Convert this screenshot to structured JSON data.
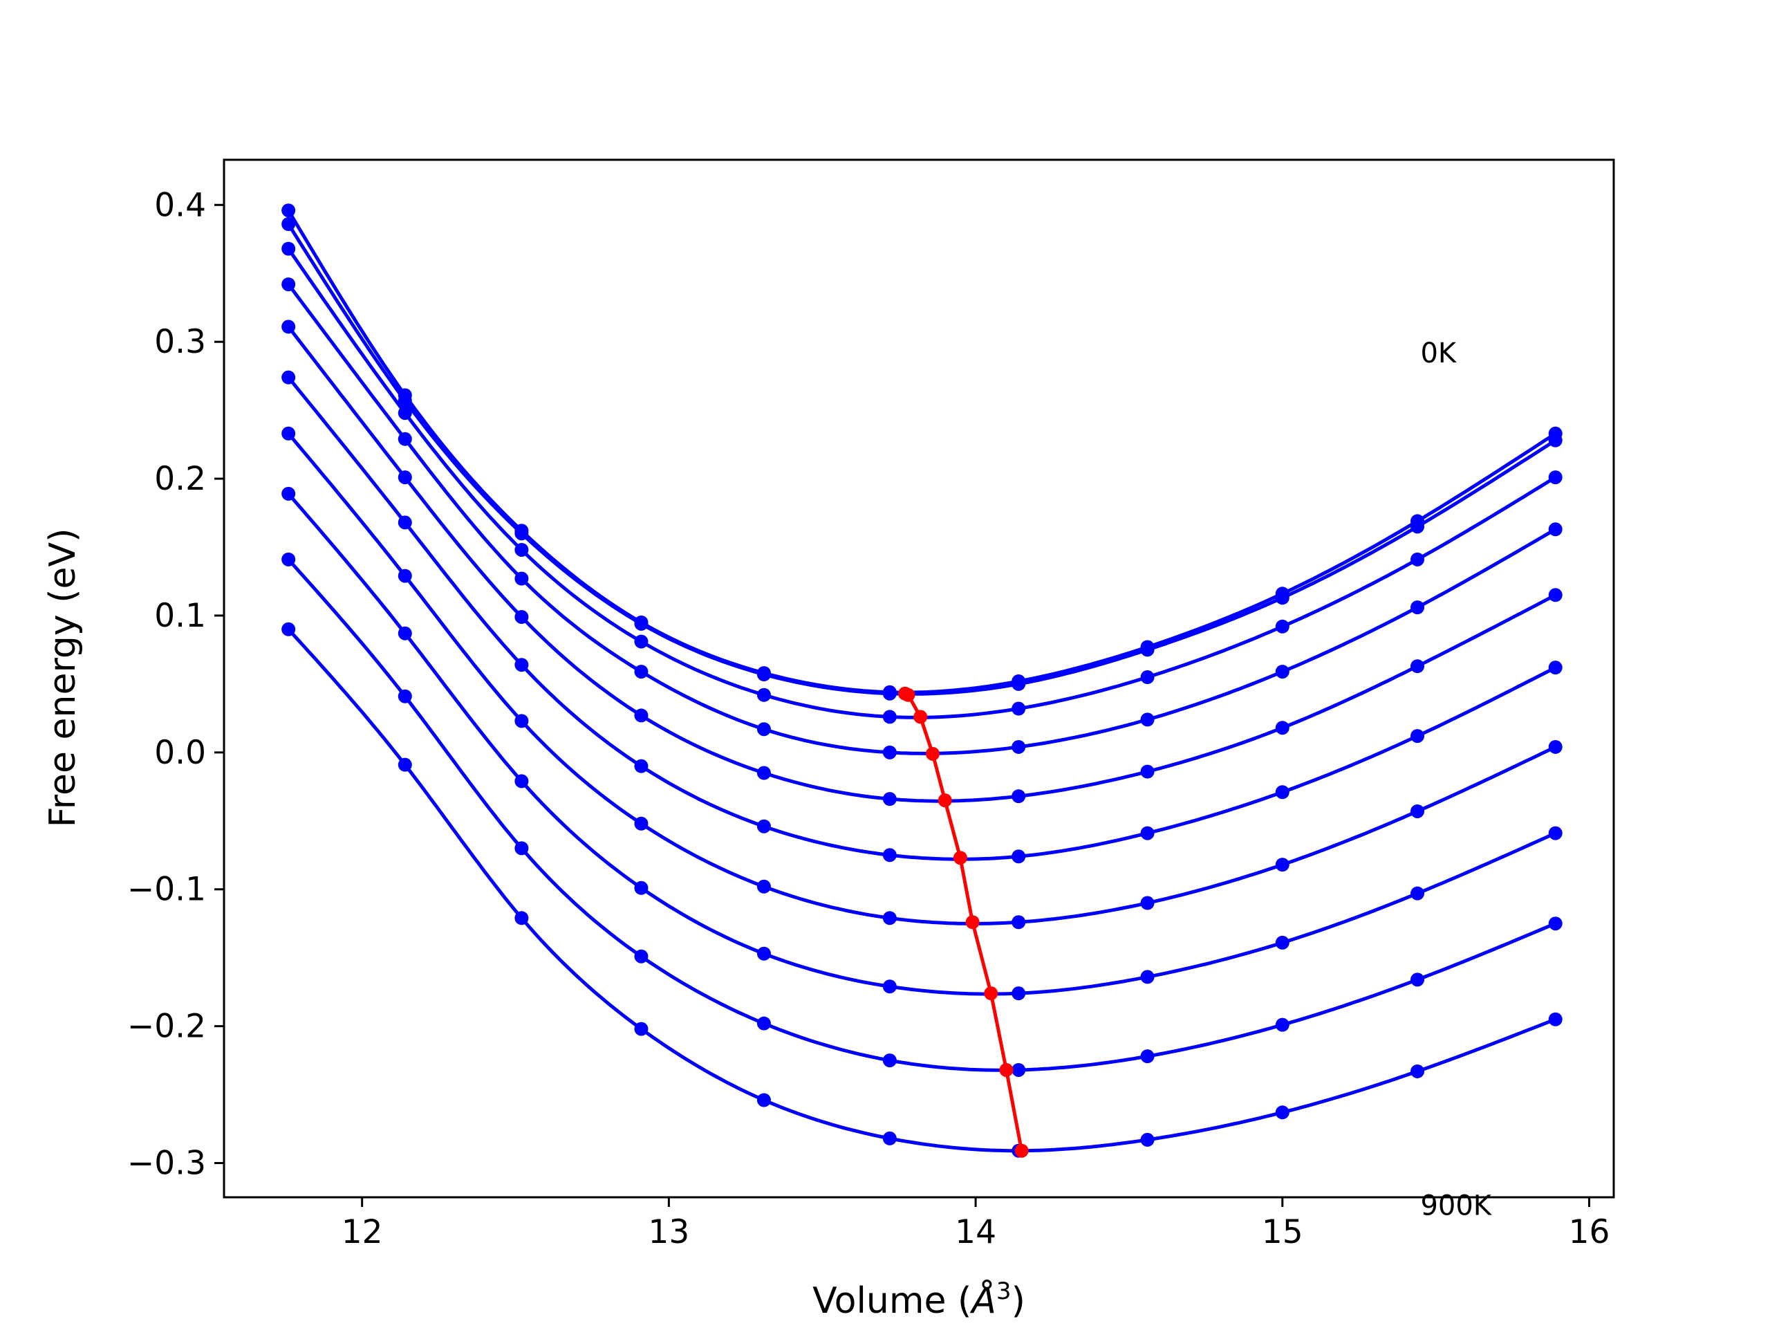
{
  "chart_data": {
    "type": "line",
    "title": "",
    "xlabel_prefix": "Volume (",
    "xlabel_unit": "Å",
    "xlabel_sup": "3",
    "xlabel_suffix": ")",
    "ylabel": "Free energy (eV)",
    "xlim": [
      11.55,
      16.08
    ],
    "ylim": [
      -0.325,
      0.433
    ],
    "xticks": [
      {
        "value": 12,
        "label": "12"
      },
      {
        "value": 13,
        "label": "13"
      },
      {
        "value": 14,
        "label": "14"
      },
      {
        "value": 15,
        "label": "15"
      },
      {
        "value": 16,
        "label": "16"
      }
    ],
    "yticks": [
      {
        "value": 0.4,
        "label": "0.4"
      },
      {
        "value": 0.3,
        "label": "0.3"
      },
      {
        "value": 0.2,
        "label": "0.2"
      },
      {
        "value": 0.1,
        "label": "0.1"
      },
      {
        "value": 0.0,
        "label": "0.0"
      },
      {
        "value": -0.1,
        "label": "−0.1"
      },
      {
        "value": -0.2,
        "label": "−0.2"
      },
      {
        "value": -0.3,
        "label": "−0.3"
      }
    ],
    "volumes": [
      11.76,
      12.14,
      12.52,
      12.91,
      13.31,
      13.72,
      14.14,
      14.56,
      15.0,
      15.44,
      15.89
    ],
    "series": [
      {
        "values": [
          0.396,
          0.261,
          0.162,
          0.095,
          0.058,
          0.044,
          0.052,
          0.077,
          0.116,
          0.169,
          0.233
        ],
        "min_x": 13.77,
        "min_y": 0.043
      },
      {
        "values": [
          0.386,
          0.257,
          0.16,
          0.094,
          0.057,
          0.043,
          0.05,
          0.075,
          0.113,
          0.165,
          0.228
        ],
        "min_x": 13.78,
        "min_y": 0.042
      },
      {
        "values": [
          0.368,
          0.248,
          0.148,
          0.081,
          0.042,
          0.026,
          0.032,
          0.055,
          0.092,
          0.141,
          0.201
        ],
        "min_x": 13.82,
        "min_y": 0.026
      },
      {
        "values": [
          0.342,
          0.229,
          0.127,
          0.059,
          0.017,
          0.0,
          0.004,
          0.024,
          0.059,
          0.106,
          0.163
        ],
        "min_x": 13.86,
        "min_y": -0.001
      },
      {
        "values": [
          0.311,
          0.201,
          0.099,
          0.027,
          -0.015,
          -0.034,
          -0.032,
          -0.014,
          0.018,
          0.063,
          0.115
        ],
        "min_x": 13.9,
        "min_y": -0.035
      },
      {
        "values": [
          0.274,
          0.168,
          0.064,
          -0.01,
          -0.054,
          -0.075,
          -0.076,
          -0.059,
          -0.029,
          0.012,
          0.062
        ],
        "min_x": 13.95,
        "min_y": -0.077
      },
      {
        "values": [
          0.233,
          0.129,
          0.023,
          -0.052,
          -0.098,
          -0.121,
          -0.124,
          -0.11,
          -0.082,
          -0.043,
          0.004
        ],
        "min_x": 13.99,
        "min_y": -0.124
      },
      {
        "values": [
          0.189,
          0.087,
          -0.021,
          -0.099,
          -0.147,
          -0.171,
          -0.176,
          -0.164,
          -0.139,
          -0.103,
          -0.059
        ],
        "min_x": 14.05,
        "min_y": -0.176
      },
      {
        "values": [
          0.141,
          0.041,
          -0.07,
          -0.149,
          -0.198,
          -0.225,
          -0.232,
          -0.222,
          -0.199,
          -0.166,
          -0.125
        ],
        "min_x": 14.1,
        "min_y": -0.232
      },
      {
        "values": [
          0.09,
          -0.009,
          -0.121,
          -0.202,
          -0.254,
          -0.282,
          -0.291,
          -0.283,
          -0.263,
          -0.233,
          -0.195
        ],
        "min_x": 14.15,
        "min_y": -0.291
      }
    ],
    "series_color": "#0000ff",
    "min_line_color": "#ff0000",
    "annotations": [
      {
        "text": "0K",
        "x": 15.45,
        "y": 0.285
      },
      {
        "text": "900K",
        "x": 15.45,
        "y": -0.338
      }
    ],
    "grid": false,
    "legend": "none"
  }
}
